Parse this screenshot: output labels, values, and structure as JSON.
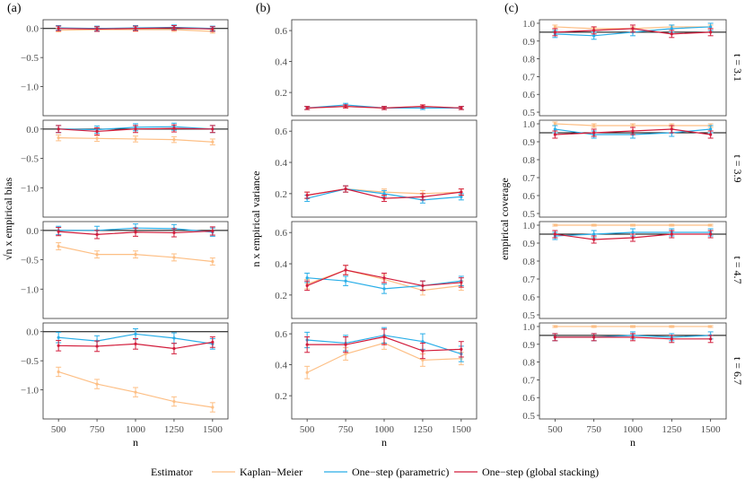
{
  "panel_labels": [
    "(a)",
    "(b)",
    "(c)"
  ],
  "legend": {
    "title": "Estimator",
    "entries": [
      {
        "label": "Kaplan−Meier",
        "color": "#fdbf85"
      },
      {
        "label": "One−step (parametric)",
        "color": "#29aee8"
      },
      {
        "label": "One−step (global stacking)",
        "color": "#d21c3b"
      }
    ]
  },
  "row_strip_labels": [
    "t = 3.1",
    "t = 3.9",
    "t = 4.7",
    "t = 6.7"
  ],
  "column_ylabels": [
    "√n x empirical bias",
    "n x empirical variance",
    "empirical coverage"
  ],
  "xlabel": "n",
  "chart_data": {
    "type": "line",
    "x": [
      500,
      750,
      1000,
      1250,
      1500
    ],
    "x_ticks": [
      "500",
      "750",
      "1000",
      "1250",
      "1500"
    ],
    "columns": [
      {
        "ylabel": "√n x empirical bias",
        "ylim": [
          -1.5,
          0.15
        ],
        "y_ticks": [
          0.0,
          -0.5,
          -1.0
        ],
        "y_tick_labels": [
          "0.0",
          "−0.5",
          "−1.0"
        ],
        "hline": 0.0,
        "rows": [
          {
            "t": "t = 3.1",
            "series": [
              {
                "name": "Kaplan−Meier",
                "values": [
                  -0.03,
                  -0.02,
                  -0.02,
                  -0.02,
                  -0.05
                ],
                "errors": [
                  0.03,
                  0.03,
                  0.03,
                  0.03,
                  0.03
                ]
              },
              {
                "name": "One−step (parametric)",
                "values": [
                  0.01,
                  0.0,
                  0.01,
                  0.02,
                  0.0
                ],
                "errors": [
                  0.04,
                  0.04,
                  0.04,
                  0.04,
                  0.04
                ]
              },
              {
                "name": "One−step (global stacking)",
                "values": [
                  0.0,
                  -0.01,
                  0.0,
                  0.01,
                  -0.01
                ],
                "errors": [
                  0.04,
                  0.04,
                  0.04,
                  0.04,
                  0.04
                ]
              }
            ]
          },
          {
            "t": "t = 3.9",
            "series": [
              {
                "name": "Kaplan−Meier",
                "values": [
                  -0.15,
                  -0.16,
                  -0.17,
                  -0.18,
                  -0.22
                ],
                "errors": [
                  0.05,
                  0.05,
                  0.05,
                  0.05,
                  0.05
                ]
              },
              {
                "name": "One−step (parametric)",
                "values": [
                  0.0,
                  -0.01,
                  0.03,
                  0.04,
                  0.0
                ],
                "errors": [
                  0.06,
                  0.06,
                  0.06,
                  0.06,
                  0.06
                ]
              },
              {
                "name": "One−step (global stacking)",
                "values": [
                  0.0,
                  -0.04,
                  0.0,
                  0.01,
                  0.0
                ],
                "errors": [
                  0.06,
                  0.06,
                  0.06,
                  0.06,
                  0.06
                ]
              }
            ]
          },
          {
            "t": "t = 4.7",
            "series": [
              {
                "name": "Kaplan−Meier",
                "values": [
                  -0.27,
                  -0.41,
                  -0.41,
                  -0.46,
                  -0.53
                ],
                "errors": [
                  0.06,
                  0.06,
                  0.06,
                  0.06,
                  0.06
                ]
              },
              {
                "name": "One−step (parametric)",
                "values": [
                  0.0,
                  0.0,
                  0.04,
                  0.03,
                  -0.03
                ],
                "errors": [
                  0.07,
                  0.07,
                  0.07,
                  0.07,
                  0.07
                ]
              },
              {
                "name": "One−step (global stacking)",
                "values": [
                  -0.02,
                  -0.07,
                  -0.03,
                  -0.04,
                  -0.01
                ],
                "errors": [
                  0.07,
                  0.07,
                  0.07,
                  0.07,
                  0.07
                ]
              }
            ]
          },
          {
            "t": "t = 6.7",
            "series": [
              {
                "name": "Kaplan−Meier",
                "values": [
                  -0.69,
                  -0.9,
                  -1.04,
                  -1.2,
                  -1.3
                ],
                "errors": [
                  0.08,
                  0.08,
                  0.08,
                  0.08,
                  0.08
                ]
              },
              {
                "name": "One−step (parametric)",
                "values": [
                  -0.1,
                  -0.16,
                  -0.04,
                  -0.11,
                  -0.21
                ],
                "errors": [
                  0.09,
                  0.09,
                  0.09,
                  0.09,
                  0.09
                ]
              },
              {
                "name": "One−step (global stacking)",
                "values": [
                  -0.24,
                  -0.25,
                  -0.21,
                  -0.29,
                  -0.18
                ],
                "errors": [
                  0.09,
                  0.09,
                  0.09,
                  0.09,
                  0.09
                ]
              }
            ]
          }
        ]
      },
      {
        "ylabel": "n x empirical variance",
        "ylim": [
          0.05,
          0.67
        ],
        "y_ticks": [
          0.2,
          0.4,
          0.6
        ],
        "y_tick_labels": [
          "0.2",
          "0.4",
          "0.6"
        ],
        "hline": null,
        "rows": [
          {
            "t": "t = 3.1",
            "series": [
              {
                "name": "Kaplan−Meier",
                "values": [
                  0.1,
                  0.11,
                  0.1,
                  0.11,
                  0.1
                ],
                "errors": [
                  0.01,
                  0.01,
                  0.01,
                  0.01,
                  0.01
                ]
              },
              {
                "name": "One−step (parametric)",
                "values": [
                  0.1,
                  0.12,
                  0.1,
                  0.1,
                  0.1
                ],
                "errors": [
                  0.01,
                  0.01,
                  0.01,
                  0.01,
                  0.01
                ]
              },
              {
                "name": "One−step (global stacking)",
                "values": [
                  0.1,
                  0.11,
                  0.1,
                  0.11,
                  0.1
                ],
                "errors": [
                  0.01,
                  0.01,
                  0.01,
                  0.01,
                  0.01
                ]
              }
            ]
          },
          {
            "t": "t = 3.9",
            "series": [
              {
                "name": "Kaplan−Meier",
                "values": [
                  0.19,
                  0.23,
                  0.21,
                  0.2,
                  0.21
                ],
                "errors": [
                  0.02,
                  0.02,
                  0.02,
                  0.02,
                  0.02
                ]
              },
              {
                "name": "One−step (parametric)",
                "values": [
                  0.17,
                  0.23,
                  0.2,
                  0.16,
                  0.18
                ],
                "errors": [
                  0.02,
                  0.02,
                  0.02,
                  0.02,
                  0.02
                ]
              },
              {
                "name": "One−step (global stacking)",
                "values": [
                  0.19,
                  0.23,
                  0.17,
                  0.18,
                  0.21
                ],
                "errors": [
                  0.02,
                  0.02,
                  0.02,
                  0.02,
                  0.02
                ]
              }
            ]
          },
          {
            "t": "t = 4.7",
            "series": [
              {
                "name": "Kaplan−Meier",
                "values": [
                  0.27,
                  0.36,
                  0.3,
                  0.23,
                  0.26
                ],
                "errors": [
                  0.03,
                  0.03,
                  0.03,
                  0.03,
                  0.03
                ]
              },
              {
                "name": "One−step (parametric)",
                "values": [
                  0.31,
                  0.29,
                  0.24,
                  0.26,
                  0.29
                ],
                "errors": [
                  0.03,
                  0.03,
                  0.03,
                  0.03,
                  0.03
                ]
              },
              {
                "name": "One−step (global stacking)",
                "values": [
                  0.26,
                  0.36,
                  0.31,
                  0.26,
                  0.28
                ],
                "errors": [
                  0.03,
                  0.03,
                  0.03,
                  0.03,
                  0.03
                ]
              }
            ]
          },
          {
            "t": "t = 6.7",
            "series": [
              {
                "name": "Kaplan−Meier",
                "values": [
                  0.35,
                  0.47,
                  0.54,
                  0.43,
                  0.44
                ],
                "errors": [
                  0.04,
                  0.04,
                  0.04,
                  0.04,
                  0.04
                ]
              },
              {
                "name": "One−step (parametric)",
                "values": [
                  0.56,
                  0.54,
                  0.59,
                  0.55,
                  0.47
                ],
                "errors": [
                  0.05,
                  0.05,
                  0.05,
                  0.05,
                  0.05
                ]
              },
              {
                "name": "One−step (global stacking)",
                "values": [
                  0.53,
                  0.53,
                  0.58,
                  0.49,
                  0.5
                ],
                "errors": [
                  0.05,
                  0.05,
                  0.05,
                  0.05,
                  0.05
                ]
              }
            ]
          }
        ]
      },
      {
        "ylabel": "empirical coverage",
        "ylim": [
          0.48,
          1.02
        ],
        "y_ticks": [
          0.5,
          0.6,
          0.7,
          0.8,
          0.9,
          1.0
        ],
        "y_tick_labels": [
          "0.5",
          "0.6",
          "0.7",
          "0.8",
          "0.9",
          "1.0"
        ],
        "hline": 0.95,
        "rows": [
          {
            "t": "t = 3.1",
            "series": [
              {
                "name": "Kaplan−Meier",
                "values": [
                  0.98,
                  0.97,
                  0.97,
                  0.98,
                  0.98
                ],
                "errors": [
                  0.01,
                  0.01,
                  0.01,
                  0.01,
                  0.01
                ]
              },
              {
                "name": "One−step (parametric)",
                "values": [
                  0.94,
                  0.93,
                  0.95,
                  0.97,
                  0.98
                ],
                "errors": [
                  0.02,
                  0.02,
                  0.02,
                  0.02,
                  0.02
                ]
              },
              {
                "name": "One−step (global stacking)",
                "values": [
                  0.95,
                  0.96,
                  0.97,
                  0.94,
                  0.95
                ],
                "errors": [
                  0.02,
                  0.02,
                  0.02,
                  0.02,
                  0.02
                ]
              }
            ]
          },
          {
            "t": "t = 3.9",
            "series": [
              {
                "name": "Kaplan−Meier",
                "values": [
                  1.0,
                  0.99,
                  0.99,
                  0.99,
                  0.99
                ],
                "errors": [
                  0.01,
                  0.01,
                  0.01,
                  0.01,
                  0.01
                ]
              },
              {
                "name": "One−step (parametric)",
                "values": [
                  0.97,
                  0.94,
                  0.94,
                  0.95,
                  0.97
                ],
                "errors": [
                  0.02,
                  0.02,
                  0.02,
                  0.02,
                  0.02
                ]
              },
              {
                "name": "One−step (global stacking)",
                "values": [
                  0.94,
                  0.95,
                  0.96,
                  0.97,
                  0.94
                ],
                "errors": [
                  0.02,
                  0.02,
                  0.02,
                  0.02,
                  0.02
                ]
              }
            ]
          },
          {
            "t": "t = 4.7",
            "series": [
              {
                "name": "Kaplan−Meier",
                "values": [
                  1.0,
                  1.0,
                  1.0,
                  1.0,
                  1.0
                ],
                "errors": [
                  0.005,
                  0.005,
                  0.005,
                  0.005,
                  0.005
                ]
              },
              {
                "name": "One−step (parametric)",
                "values": [
                  0.94,
                  0.95,
                  0.96,
                  0.96,
                  0.96
                ],
                "errors": [
                  0.02,
                  0.02,
                  0.02,
                  0.02,
                  0.02
                ]
              },
              {
                "name": "One−step (global stacking)",
                "values": [
                  0.95,
                  0.92,
                  0.93,
                  0.95,
                  0.95
                ],
                "errors": [
                  0.02,
                  0.02,
                  0.02,
                  0.02,
                  0.02
                ]
              }
            ]
          },
          {
            "t": "t = 6.7",
            "series": [
              {
                "name": "Kaplan−Meier",
                "values": [
                  1.0,
                  1.0,
                  1.0,
                  1.0,
                  1.0
                ],
                "errors": [
                  0.005,
                  0.005,
                  0.005,
                  0.005,
                  0.005
                ]
              },
              {
                "name": "One−step (parametric)",
                "values": [
                  0.94,
                  0.94,
                  0.95,
                  0.94,
                  0.95
                ],
                "errors": [
                  0.02,
                  0.02,
                  0.02,
                  0.02,
                  0.02
                ]
              },
              {
                "name": "One−step (global stacking)",
                "values": [
                  0.94,
                  0.94,
                  0.94,
                  0.93,
                  0.93
                ],
                "errors": [
                  0.02,
                  0.02,
                  0.02,
                  0.02,
                  0.02
                ]
              }
            ]
          }
        ]
      }
    ]
  }
}
